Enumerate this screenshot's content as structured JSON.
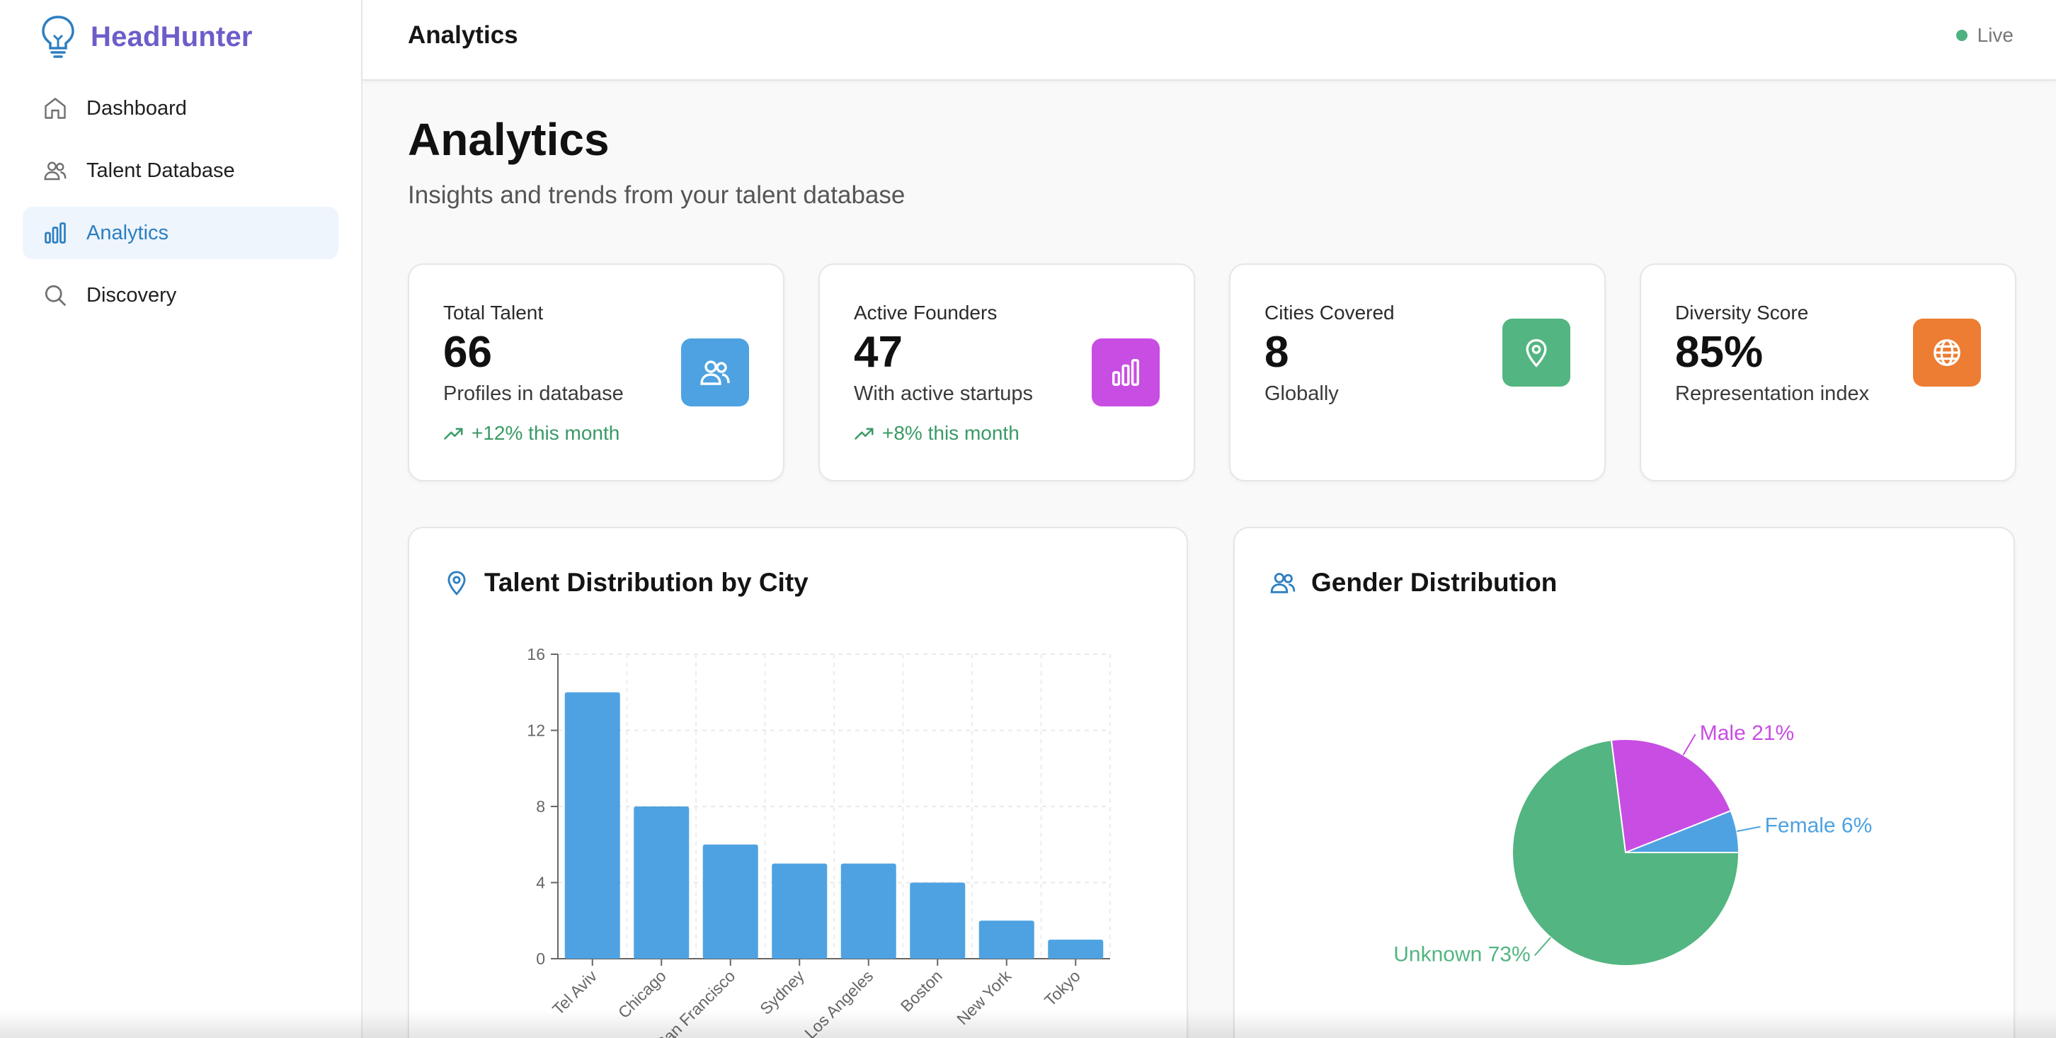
{
  "sidebar": {
    "brand": "HeadHunter",
    "items": [
      {
        "label": "Dashboard",
        "icon": "home-icon",
        "active": false
      },
      {
        "label": "Talent Database",
        "icon": "users-icon",
        "active": false
      },
      {
        "label": "Analytics",
        "icon": "bar-chart-icon",
        "active": true
      },
      {
        "label": "Discovery",
        "icon": "search-icon",
        "active": false
      }
    ]
  },
  "topbar": {
    "title": "Analytics",
    "status": "Live"
  },
  "page": {
    "title": "Analytics",
    "subtitle": "Insights and trends from your talent database"
  },
  "stats": [
    {
      "label": "Total Talent",
      "value": "66",
      "desc": "Profiles in database",
      "trend": "+12% this month",
      "icon": "users-icon",
      "color": "#4ea2e1"
    },
    {
      "label": "Active Founders",
      "value": "47",
      "desc": "With active startups",
      "trend": "+8% this month",
      "icon": "bar-chart-icon",
      "color": "#c84de3"
    },
    {
      "label": "Cities Covered",
      "value": "8",
      "desc": "Globally",
      "trend": "",
      "icon": "map-pin-icon",
      "color": "#53b581"
    },
    {
      "label": "Diversity Score",
      "value": "85%",
      "desc": "Representation index",
      "trend": "",
      "icon": "globe-icon",
      "color": "#ec7d32"
    }
  ],
  "city_panel": {
    "title": "Talent Distribution by City",
    "icon": "map-pin-icon"
  },
  "gender_panel": {
    "title": "Gender Distribution",
    "icon": "users-icon"
  },
  "chart_data": [
    {
      "type": "bar",
      "categories": [
        "Tel Aviv",
        "Chicago",
        "San Francisco",
        "Sydney",
        "Los Angeles",
        "Boston",
        "New York",
        "Tokyo"
      ],
      "values": [
        14,
        8,
        6,
        5,
        5,
        4,
        2,
        1
      ],
      "ylim": [
        0,
        16
      ],
      "yticks": [
        0,
        4,
        8,
        12,
        16
      ],
      "grid": true,
      "color": "#4ea2e1"
    },
    {
      "type": "pie",
      "slices": [
        {
          "label": "Male 21%",
          "value": 21,
          "color": "#c84de3"
        },
        {
          "label": "Female 6%",
          "value": 6,
          "color": "#4ea2e1"
        },
        {
          "label": "Unknown 73%",
          "value": 73,
          "color": "#53b581"
        }
      ]
    }
  ]
}
